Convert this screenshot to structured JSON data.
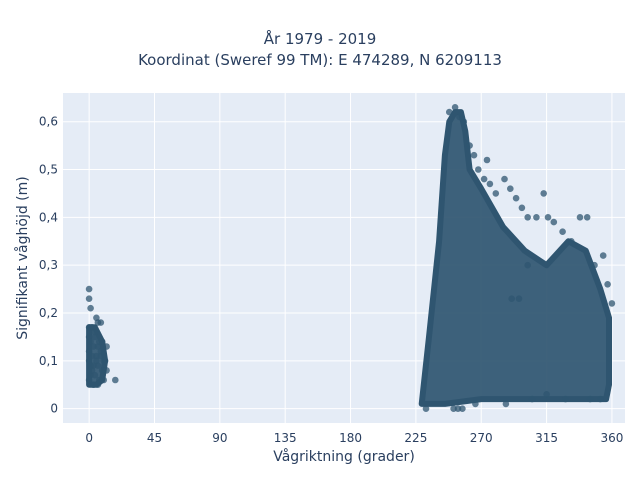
{
  "chart_data": {
    "type": "scatter",
    "title_lines": [
      "År 1979 - 2019",
      "Koordinat (Sweref 99 TM): E 474289, N 6209113"
    ],
    "xlabel": "Vågriktning (grader)",
    "ylabel": "Signifikant våghöjd (m)",
    "xlim": [
      -18,
      369
    ],
    "ylim": [
      -0.03,
      0.66
    ],
    "x_ticks": [
      0,
      45,
      90,
      135,
      180,
      225,
      270,
      315,
      360
    ],
    "x_tick_labels": [
      "0",
      "45",
      "90",
      "135",
      "180",
      "225",
      "270",
      "315",
      "360"
    ],
    "y_ticks": [
      0,
      0.1,
      0.2,
      0.3,
      0.4,
      0.5,
      0.6
    ],
    "y_tick_labels": [
      "0",
      "0,1",
      "0,2",
      "0,3",
      "0,4",
      "0,5",
      "0,6"
    ],
    "grid": true,
    "marker_color": "#2f5570",
    "plot_bg": "#e5ecf6",
    "points": [
      [
        0,
        0.25
      ],
      [
        0,
        0.23
      ],
      [
        1,
        0.21
      ],
      [
        0,
        0.17
      ],
      [
        2,
        0.17
      ],
      [
        4,
        0.16
      ],
      [
        6,
        0.18
      ],
      [
        8,
        0.18
      ],
      [
        5,
        0.19
      ],
      [
        0,
        0.15
      ],
      [
        1,
        0.14
      ],
      [
        3,
        0.13
      ],
      [
        6,
        0.13
      ],
      [
        9,
        0.14
      ],
      [
        12,
        0.13
      ],
      [
        0,
        0.12
      ],
      [
        2,
        0.11
      ],
      [
        5,
        0.11
      ],
      [
        8,
        0.11
      ],
      [
        11,
        0.1
      ],
      [
        0,
        0.1
      ],
      [
        3,
        0.09
      ],
      [
        6,
        0.09
      ],
      [
        9,
        0.08
      ],
      [
        12,
        0.08
      ],
      [
        1,
        0.07
      ],
      [
        4,
        0.07
      ],
      [
        7,
        0.06
      ],
      [
        10,
        0.06
      ],
      [
        0,
        0.06
      ],
      [
        3,
        0.05
      ],
      [
        6,
        0.05
      ],
      [
        18,
        0.06
      ],
      [
        2,
        0.08
      ],
      [
        5,
        0.1
      ],
      [
        8,
        0.12
      ],
      [
        4,
        0.15
      ],
      [
        7,
        0.14
      ],
      [
        10,
        0.1
      ],
      [
        1,
        0.09
      ],
      [
        251,
        0.0
      ],
      [
        254,
        0.0
      ],
      [
        257,
        0.0
      ],
      [
        232,
        0.0
      ],
      [
        248,
        0.62
      ],
      [
        252,
        0.63
      ],
      [
        255,
        0.61
      ],
      [
        258,
        0.6
      ],
      [
        262,
        0.55
      ],
      [
        265,
        0.53
      ],
      [
        268,
        0.5
      ],
      [
        272,
        0.48
      ],
      [
        276,
        0.47
      ],
      [
        280,
        0.45
      ],
      [
        274,
        0.52
      ],
      [
        286,
        0.48
      ],
      [
        290,
        0.46
      ],
      [
        294,
        0.44
      ],
      [
        298,
        0.42
      ],
      [
        302,
        0.4
      ],
      [
        308,
        0.4
      ],
      [
        313,
        0.45
      ],
      [
        316,
        0.4
      ],
      [
        320,
        0.39
      ],
      [
        326,
        0.37
      ],
      [
        332,
        0.35
      ],
      [
        338,
        0.4
      ],
      [
        343,
        0.4
      ],
      [
        348,
        0.3
      ],
      [
        354,
        0.32
      ],
      [
        357,
        0.26
      ],
      [
        360,
        0.22
      ],
      [
        291,
        0.23
      ],
      [
        296,
        0.23
      ],
      [
        302,
        0.3
      ],
      [
        328,
        0.02
      ],
      [
        345,
        0.02
      ],
      [
        352,
        0.02
      ],
      [
        266,
        0.01
      ],
      [
        287,
        0.01
      ],
      [
        305,
        0.02
      ],
      [
        315,
        0.03
      ]
    ]
  }
}
